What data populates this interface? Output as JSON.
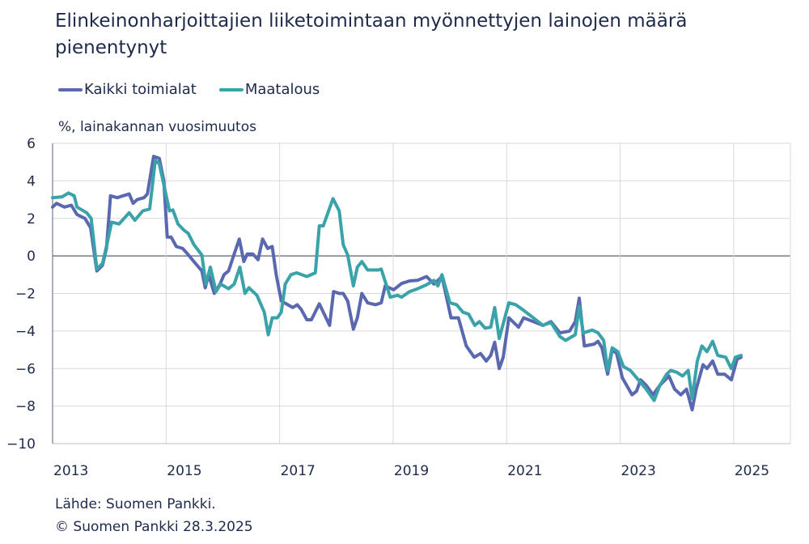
{
  "chart_data": {
    "type": "line",
    "title": "Elinkeinonharjoittajien liiketoimintaan myönnettyjen lainojen määrä pienentynyt",
    "ylabel": "%, lainakannan vuosimuutos",
    "xlabel": "",
    "xlim": [
      2013,
      2026
    ],
    "ylim": [
      -10,
      6
    ],
    "yticks": [
      6,
      4,
      2,
      0,
      -2,
      -4,
      -6,
      -8,
      -10
    ],
    "xticks": [
      2013,
      2015,
      2017,
      2019,
      2021,
      2023,
      2025
    ],
    "grid": true,
    "legend_placement": "top-left",
    "series": [
      {
        "name": "Kaikki toimialat",
        "color": "#5a68b0",
        "points": [
          [
            2013.0,
            2.6
          ],
          [
            2013.07,
            2.8
          ],
          [
            2013.21,
            2.6
          ],
          [
            2013.33,
            2.7
          ],
          [
            2013.43,
            2.2
          ],
          [
            2013.57,
            2.0
          ],
          [
            2013.67,
            1.5
          ],
          [
            2013.78,
            -0.8
          ],
          [
            2013.88,
            -0.5
          ],
          [
            2013.95,
            0.4
          ],
          [
            2014.02,
            3.2
          ],
          [
            2014.14,
            3.1
          ],
          [
            2014.24,
            3.2
          ],
          [
            2014.35,
            3.3
          ],
          [
            2014.42,
            2.8
          ],
          [
            2014.49,
            3.0
          ],
          [
            2014.61,
            3.1
          ],
          [
            2014.67,
            3.3
          ],
          [
            2014.78,
            5.3
          ],
          [
            2014.88,
            5.2
          ],
          [
            2014.96,
            4.0
          ],
          [
            2015.02,
            1.0
          ],
          [
            2015.09,
            1.0
          ],
          [
            2015.18,
            0.5
          ],
          [
            2015.29,
            0.4
          ],
          [
            2015.38,
            0.1
          ],
          [
            2015.49,
            -0.3
          ],
          [
            2015.63,
            -0.8
          ],
          [
            2015.69,
            -1.7
          ],
          [
            2015.75,
            -1.0
          ],
          [
            2015.85,
            -2.0
          ],
          [
            2015.95,
            -1.5
          ],
          [
            2016.02,
            -1.0
          ],
          [
            2016.1,
            -0.8
          ],
          [
            2016.2,
            0.1
          ],
          [
            2016.29,
            0.9
          ],
          [
            2016.37,
            -0.3
          ],
          [
            2016.43,
            0.1
          ],
          [
            2016.53,
            0.1
          ],
          [
            2016.62,
            -0.2
          ],
          [
            2016.7,
            0.9
          ],
          [
            2016.79,
            0.4
          ],
          [
            2016.87,
            0.5
          ],
          [
            2016.94,
            -1.0
          ],
          [
            2017.03,
            -2.4
          ],
          [
            2017.23,
            -2.75
          ],
          [
            2017.31,
            -2.6
          ],
          [
            2017.38,
            -2.85
          ],
          [
            2017.48,
            -3.4
          ],
          [
            2017.56,
            -3.4
          ],
          [
            2017.7,
            -2.55
          ],
          [
            2017.88,
            -3.7
          ],
          [
            2017.95,
            -1.9
          ],
          [
            2018.05,
            -2.0
          ],
          [
            2018.12,
            -2.0
          ],
          [
            2018.2,
            -2.4
          ],
          [
            2018.3,
            -3.9
          ],
          [
            2018.37,
            -3.3
          ],
          [
            2018.45,
            -2.0
          ],
          [
            2018.55,
            -2.5
          ],
          [
            2018.69,
            -2.6
          ],
          [
            2018.79,
            -2.5
          ],
          [
            2018.86,
            -1.6
          ],
          [
            2019.01,
            -1.8
          ],
          [
            2019.15,
            -1.47
          ],
          [
            2019.29,
            -1.33
          ],
          [
            2019.43,
            -1.3
          ],
          [
            2019.59,
            -1.1
          ],
          [
            2019.72,
            -1.5
          ],
          [
            2019.86,
            -1.1
          ],
          [
            2020.02,
            -3.3
          ],
          [
            2020.15,
            -3.3
          ],
          [
            2020.29,
            -4.8
          ],
          [
            2020.43,
            -5.4
          ],
          [
            2020.54,
            -5.2
          ],
          [
            2020.64,
            -5.6
          ],
          [
            2020.72,
            -5.3
          ],
          [
            2020.79,
            -4.6
          ],
          [
            2020.87,
            -6.0
          ],
          [
            2020.94,
            -5.4
          ],
          [
            2021.04,
            -3.3
          ],
          [
            2021.21,
            -3.8
          ],
          [
            2021.3,
            -3.3
          ],
          [
            2021.47,
            -3.5
          ],
          [
            2021.64,
            -3.7
          ],
          [
            2021.78,
            -3.5
          ],
          [
            2021.94,
            -4.1
          ],
          [
            2022.11,
            -4.0
          ],
          [
            2022.21,
            -3.5
          ],
          [
            2022.28,
            -2.25
          ],
          [
            2022.37,
            -4.8
          ],
          [
            2022.54,
            -4.7
          ],
          [
            2022.61,
            -4.55
          ],
          [
            2022.68,
            -4.9
          ],
          [
            2022.78,
            -6.3
          ],
          [
            2022.86,
            -5.0
          ],
          [
            2022.94,
            -5.2
          ],
          [
            2023.04,
            -6.5
          ],
          [
            2023.21,
            -7.4
          ],
          [
            2023.29,
            -7.2
          ],
          [
            2023.36,
            -6.6
          ],
          [
            2023.46,
            -6.9
          ],
          [
            2023.58,
            -7.4
          ],
          [
            2023.7,
            -6.9
          ],
          [
            2023.86,
            -6.4
          ],
          [
            2023.96,
            -7.1
          ],
          [
            2024.07,
            -7.4
          ],
          [
            2024.17,
            -7.1
          ],
          [
            2024.27,
            -8.2
          ],
          [
            2024.34,
            -7.1
          ],
          [
            2024.46,
            -5.8
          ],
          [
            2024.53,
            -6.0
          ],
          [
            2024.63,
            -5.6
          ],
          [
            2024.72,
            -6.3
          ],
          [
            2024.84,
            -6.3
          ],
          [
            2024.96,
            -6.6
          ],
          [
            2025.06,
            -5.5
          ],
          [
            2025.13,
            -5.4
          ]
        ]
      },
      {
        "name": "Maatalous",
        "color": "#3aa3aa",
        "points": [
          [
            2013.0,
            3.1
          ],
          [
            2013.17,
            3.15
          ],
          [
            2013.28,
            3.35
          ],
          [
            2013.38,
            3.2
          ],
          [
            2013.43,
            2.6
          ],
          [
            2013.6,
            2.3
          ],
          [
            2013.68,
            2.0
          ],
          [
            2013.78,
            -0.7
          ],
          [
            2013.88,
            -0.4
          ],
          [
            2013.95,
            0.5
          ],
          [
            2014.04,
            1.8
          ],
          [
            2014.17,
            1.7
          ],
          [
            2014.35,
            2.3
          ],
          [
            2014.45,
            1.9
          ],
          [
            2014.59,
            2.4
          ],
          [
            2014.71,
            2.5
          ],
          [
            2014.81,
            5.1
          ],
          [
            2014.88,
            4.9
          ],
          [
            2014.96,
            3.8
          ],
          [
            2015.06,
            2.4
          ],
          [
            2015.12,
            2.45
          ],
          [
            2015.21,
            1.7
          ],
          [
            2015.32,
            1.35
          ],
          [
            2015.39,
            1.2
          ],
          [
            2015.49,
            0.6
          ],
          [
            2015.63,
            0.05
          ],
          [
            2015.7,
            -1.5
          ],
          [
            2015.78,
            -0.6
          ],
          [
            2015.88,
            -1.9
          ],
          [
            2015.96,
            -1.5
          ],
          [
            2016.1,
            -1.75
          ],
          [
            2016.2,
            -1.5
          ],
          [
            2016.3,
            -0.6
          ],
          [
            2016.39,
            -2.0
          ],
          [
            2016.46,
            -1.7
          ],
          [
            2016.6,
            -2.1
          ],
          [
            2016.73,
            -3.0
          ],
          [
            2016.8,
            -4.2
          ],
          [
            2016.87,
            -3.3
          ],
          [
            2016.96,
            -3.3
          ],
          [
            2017.03,
            -3.0
          ],
          [
            2017.1,
            -1.5
          ],
          [
            2017.2,
            -1.0
          ],
          [
            2017.3,
            -0.9
          ],
          [
            2017.48,
            -1.1
          ],
          [
            2017.63,
            -0.9
          ],
          [
            2017.7,
            1.6
          ],
          [
            2017.77,
            1.6
          ],
          [
            2017.94,
            3.05
          ],
          [
            2018.05,
            2.4
          ],
          [
            2018.12,
            0.6
          ],
          [
            2018.2,
            0.05
          ],
          [
            2018.3,
            -1.6
          ],
          [
            2018.37,
            -0.6
          ],
          [
            2018.45,
            -0.3
          ],
          [
            2018.55,
            -0.75
          ],
          [
            2018.74,
            -0.75
          ],
          [
            2018.79,
            -0.7
          ],
          [
            2018.95,
            -2.2
          ],
          [
            2019.08,
            -2.1
          ],
          [
            2019.15,
            -2.2
          ],
          [
            2019.29,
            -1.9
          ],
          [
            2019.43,
            -1.75
          ],
          [
            2019.58,
            -1.55
          ],
          [
            2019.72,
            -1.3
          ],
          [
            2019.79,
            -1.6
          ],
          [
            2019.86,
            -1.0
          ],
          [
            2020.0,
            -2.5
          ],
          [
            2020.12,
            -2.6
          ],
          [
            2020.23,
            -3.0
          ],
          [
            2020.33,
            -3.1
          ],
          [
            2020.44,
            -3.7
          ],
          [
            2020.52,
            -3.5
          ],
          [
            2020.62,
            -3.85
          ],
          [
            2020.72,
            -3.8
          ],
          [
            2020.79,
            -2.75
          ],
          [
            2020.87,
            -4.4
          ],
          [
            2021.04,
            -2.5
          ],
          [
            2021.16,
            -2.6
          ],
          [
            2021.3,
            -2.9
          ],
          [
            2021.47,
            -3.3
          ],
          [
            2021.64,
            -3.7
          ],
          [
            2021.78,
            -3.55
          ],
          [
            2021.94,
            -4.3
          ],
          [
            2022.04,
            -4.5
          ],
          [
            2022.21,
            -4.2
          ],
          [
            2022.28,
            -2.7
          ],
          [
            2022.35,
            -4.1
          ],
          [
            2022.51,
            -3.95
          ],
          [
            2022.61,
            -4.1
          ],
          [
            2022.71,
            -4.5
          ],
          [
            2022.78,
            -6.1
          ],
          [
            2022.86,
            -4.9
          ],
          [
            2022.96,
            -5.1
          ],
          [
            2023.06,
            -5.9
          ],
          [
            2023.18,
            -6.1
          ],
          [
            2023.32,
            -6.6
          ],
          [
            2023.46,
            -7.1
          ],
          [
            2023.6,
            -7.7
          ],
          [
            2023.7,
            -6.9
          ],
          [
            2023.82,
            -6.3
          ],
          [
            2023.89,
            -6.1
          ],
          [
            2024.0,
            -6.2
          ],
          [
            2024.1,
            -6.4
          ],
          [
            2024.2,
            -6.1
          ],
          [
            2024.27,
            -7.6
          ],
          [
            2024.36,
            -5.6
          ],
          [
            2024.44,
            -4.8
          ],
          [
            2024.53,
            -5.1
          ],
          [
            2024.63,
            -4.55
          ],
          [
            2024.72,
            -5.3
          ],
          [
            2024.86,
            -5.4
          ],
          [
            2024.96,
            -6.0
          ],
          [
            2025.03,
            -5.4
          ],
          [
            2025.13,
            -5.3
          ]
        ]
      }
    ]
  },
  "footer": {
    "source": "Lähde: Suomen Pankki.",
    "copyright": "© Suomen Pankki 28.3.2025"
  }
}
